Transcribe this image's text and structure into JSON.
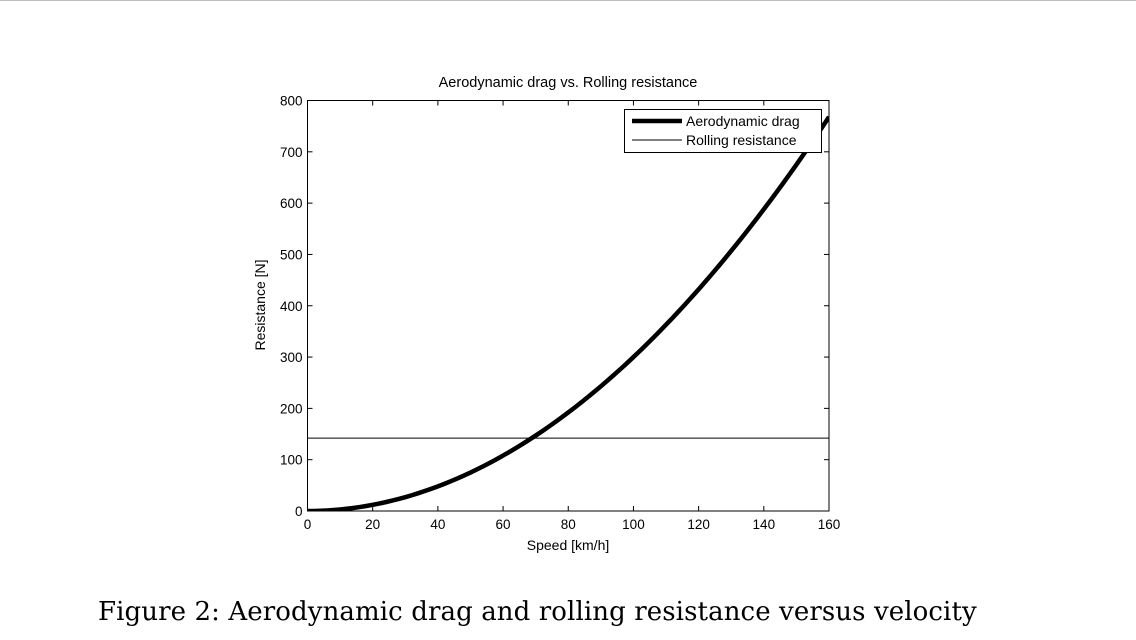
{
  "caption": "Figure 2: Aerodynamic drag and rolling resistance versus velocity",
  "chart_data": {
    "type": "line",
    "title": "Aerodynamic drag vs. Rolling resistance",
    "xlabel": "Speed [km/h]",
    "ylabel": "Resistance [N]",
    "xlim": [
      0,
      160
    ],
    "ylim": [
      0,
      800
    ],
    "xticks": [
      0,
      20,
      40,
      60,
      80,
      100,
      120,
      140,
      160
    ],
    "yticks": [
      0,
      100,
      200,
      300,
      400,
      500,
      600,
      700,
      800
    ],
    "grid": false,
    "legend_position": "top-right",
    "x": [
      0,
      20,
      40,
      60,
      80,
      100,
      120,
      140,
      160
    ],
    "series": [
      {
        "name": "Aerodynamic drag",
        "values": [
          0,
          12,
          48,
          108,
          192,
          300,
          432,
          588,
          768
        ],
        "color": "#000000",
        "line_style": "thick"
      },
      {
        "name": "Rolling resistance",
        "values": [
          142,
          142,
          142,
          142,
          142,
          142,
          142,
          142,
          142
        ],
        "color": "#000000",
        "line_style": "thin"
      }
    ]
  }
}
